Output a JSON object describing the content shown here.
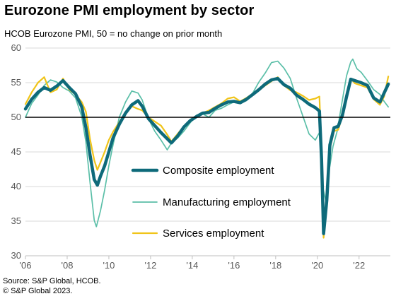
{
  "chart_data": {
    "type": "line",
    "title": "Eurozone PMI employment  by sector",
    "subtitle": "HCOB  Eurozone PMI, 50 = no change on prior month",
    "ylim": [
      30,
      60
    ],
    "yticks": [
      30,
      35,
      40,
      45,
      50,
      55,
      60
    ],
    "xlim": [
      2006.0,
      2023.5
    ],
    "xticks": [
      {
        "value": 2006,
        "label": "'06"
      },
      {
        "value": 2008,
        "label": "'08"
      },
      {
        "value": 2010,
        "label": "'10"
      },
      {
        "value": 2012,
        "label": "'12"
      },
      {
        "value": 2014,
        "label": "'14"
      },
      {
        "value": 2016,
        "label": "'16"
      },
      {
        "value": 2018,
        "label": "'18"
      },
      {
        "value": 2020,
        "label": "'20"
      },
      {
        "value": 2022,
        "label": "'22"
      }
    ],
    "reference_line": 50,
    "legend_position": "center",
    "series": [
      {
        "name": "Composite employment",
        "color": "#0e6a7a",
        "points": [
          [
            2006.0,
            51.2
          ],
          [
            2006.3,
            52.6
          ],
          [
            2006.6,
            53.6
          ],
          [
            2006.9,
            54.3
          ],
          [
            2007.2,
            53.9
          ],
          [
            2007.5,
            54.5
          ],
          [
            2007.8,
            55.3
          ],
          [
            2008.1,
            54.3
          ],
          [
            2008.4,
            53.4
          ],
          [
            2008.7,
            51.5
          ],
          [
            2008.9,
            48.5
          ],
          [
            2009.1,
            44.5
          ],
          [
            2009.3,
            41.0
          ],
          [
            2009.45,
            40.2
          ],
          [
            2009.6,
            41.5
          ],
          [
            2009.8,
            43.0
          ],
          [
            2010.0,
            45.0
          ],
          [
            2010.2,
            47.0
          ],
          [
            2010.5,
            49.0
          ],
          [
            2010.8,
            50.6
          ],
          [
            2011.1,
            51.8
          ],
          [
            2011.4,
            52.4
          ],
          [
            2011.6,
            51.6
          ],
          [
            2011.9,
            49.8
          ],
          [
            2012.2,
            48.8
          ],
          [
            2012.5,
            47.8
          ],
          [
            2012.8,
            46.9
          ],
          [
            2013.0,
            46.3
          ],
          [
            2013.3,
            47.3
          ],
          [
            2013.6,
            48.6
          ],
          [
            2013.9,
            49.5
          ],
          [
            2014.2,
            50.1
          ],
          [
            2014.5,
            50.6
          ],
          [
            2014.8,
            50.7
          ],
          [
            2015.1,
            51.3
          ],
          [
            2015.4,
            51.8
          ],
          [
            2015.7,
            52.2
          ],
          [
            2016.0,
            52.3
          ],
          [
            2016.3,
            52.1
          ],
          [
            2016.6,
            52.6
          ],
          [
            2016.9,
            53.3
          ],
          [
            2017.2,
            54.0
          ],
          [
            2017.5,
            54.8
          ],
          [
            2017.8,
            55.4
          ],
          [
            2018.1,
            55.6
          ],
          [
            2018.4,
            54.7
          ],
          [
            2018.7,
            54.2
          ],
          [
            2019.0,
            53.2
          ],
          [
            2019.3,
            52.6
          ],
          [
            2019.6,
            51.9
          ],
          [
            2019.9,
            51.4
          ],
          [
            2020.1,
            50.9
          ],
          [
            2020.2,
            44.0
          ],
          [
            2020.3,
            33.2
          ],
          [
            2020.45,
            38.0
          ],
          [
            2020.6,
            46.0
          ],
          [
            2020.8,
            48.5
          ],
          [
            2021.0,
            48.7
          ],
          [
            2021.2,
            50.3
          ],
          [
            2021.4,
            53.0
          ],
          [
            2021.6,
            55.5
          ],
          [
            2021.8,
            55.3
          ],
          [
            2022.1,
            55.0
          ],
          [
            2022.4,
            54.6
          ],
          [
            2022.7,
            52.8
          ],
          [
            2023.0,
            52.2
          ],
          [
            2023.2,
            53.5
          ],
          [
            2023.4,
            54.8
          ]
        ]
      },
      {
        "name": "Manufacturing employment",
        "color": "#5bbfa8",
        "points": [
          [
            2006.0,
            50.0
          ],
          [
            2006.3,
            52.0
          ],
          [
            2006.6,
            53.2
          ],
          [
            2006.9,
            54.6
          ],
          [
            2007.2,
            55.4
          ],
          [
            2007.5,
            55.1
          ],
          [
            2007.8,
            54.3
          ],
          [
            2008.1,
            53.8
          ],
          [
            2008.4,
            52.8
          ],
          [
            2008.7,
            50.1
          ],
          [
            2008.9,
            46.4
          ],
          [
            2009.1,
            40.5
          ],
          [
            2009.3,
            35.1
          ],
          [
            2009.4,
            34.2
          ],
          [
            2009.6,
            36.5
          ],
          [
            2009.8,
            39.5
          ],
          [
            2010.0,
            43.0
          ],
          [
            2010.2,
            46.0
          ],
          [
            2010.5,
            50.0
          ],
          [
            2010.8,
            52.2
          ],
          [
            2011.1,
            53.8
          ],
          [
            2011.4,
            53.5
          ],
          [
            2011.6,
            52.5
          ],
          [
            2011.9,
            49.8
          ],
          [
            2012.2,
            48.0
          ],
          [
            2012.5,
            46.7
          ],
          [
            2012.8,
            45.3
          ],
          [
            2013.0,
            46.3
          ],
          [
            2013.3,
            47.0
          ],
          [
            2013.6,
            48.0
          ],
          [
            2013.9,
            49.2
          ],
          [
            2014.2,
            50.3
          ],
          [
            2014.5,
            50.5
          ],
          [
            2014.8,
            50.0
          ],
          [
            2015.1,
            51.0
          ],
          [
            2015.4,
            51.3
          ],
          [
            2015.7,
            51.8
          ],
          [
            2016.0,
            52.2
          ],
          [
            2016.3,
            52.0
          ],
          [
            2016.6,
            52.4
          ],
          [
            2016.9,
            53.5
          ],
          [
            2017.2,
            55.1
          ],
          [
            2017.5,
            56.4
          ],
          [
            2017.8,
            57.9
          ],
          [
            2018.1,
            58.1
          ],
          [
            2018.4,
            57.1
          ],
          [
            2018.7,
            55.6
          ],
          [
            2019.0,
            52.8
          ],
          [
            2019.3,
            50.2
          ],
          [
            2019.6,
            47.6
          ],
          [
            2019.9,
            46.7
          ],
          [
            2020.1,
            47.8
          ],
          [
            2020.25,
            40.0
          ],
          [
            2020.4,
            38.0
          ],
          [
            2020.55,
            42.0
          ],
          [
            2020.75,
            45.8
          ],
          [
            2020.95,
            48.0
          ],
          [
            2021.2,
            52.5
          ],
          [
            2021.4,
            56.0
          ],
          [
            2021.6,
            58.0
          ],
          [
            2021.7,
            58.4
          ],
          [
            2021.9,
            57.0
          ],
          [
            2022.1,
            56.5
          ],
          [
            2022.4,
            55.3
          ],
          [
            2022.7,
            54.0
          ],
          [
            2023.0,
            53.3
          ],
          [
            2023.2,
            52.3
          ],
          [
            2023.4,
            51.5
          ]
        ]
      },
      {
        "name": "Services employment",
        "color": "#f0c419",
        "points": [
          [
            2006.0,
            51.9
          ],
          [
            2006.3,
            53.6
          ],
          [
            2006.6,
            55.0
          ],
          [
            2006.9,
            55.8
          ],
          [
            2007.2,
            53.6
          ],
          [
            2007.5,
            54.0
          ],
          [
            2007.8,
            55.6
          ],
          [
            2008.1,
            54.0
          ],
          [
            2008.4,
            53.3
          ],
          [
            2008.7,
            52.2
          ],
          [
            2008.9,
            50.8
          ],
          [
            2009.1,
            46.8
          ],
          [
            2009.3,
            43.8
          ],
          [
            2009.45,
            42.4
          ],
          [
            2009.6,
            43.5
          ],
          [
            2009.8,
            45.0
          ],
          [
            2010.0,
            46.7
          ],
          [
            2010.2,
            47.9
          ],
          [
            2010.5,
            49.3
          ],
          [
            2010.8,
            50.6
          ],
          [
            2011.1,
            51.6
          ],
          [
            2011.4,
            51.2
          ],
          [
            2011.6,
            51.0
          ],
          [
            2011.9,
            50.0
          ],
          [
            2012.2,
            49.4
          ],
          [
            2012.5,
            48.8
          ],
          [
            2012.8,
            47.5
          ],
          [
            2013.0,
            46.5
          ],
          [
            2013.3,
            47.6
          ],
          [
            2013.6,
            48.7
          ],
          [
            2013.9,
            49.5
          ],
          [
            2014.2,
            50.1
          ],
          [
            2014.5,
            50.6
          ],
          [
            2014.8,
            51.0
          ],
          [
            2015.1,
            51.5
          ],
          [
            2015.4,
            52.0
          ],
          [
            2015.7,
            52.7
          ],
          [
            2016.0,
            52.9
          ],
          [
            2016.3,
            52.3
          ],
          [
            2016.6,
            52.8
          ],
          [
            2016.9,
            53.4
          ],
          [
            2017.2,
            53.9
          ],
          [
            2017.5,
            54.6
          ],
          [
            2017.8,
            55.2
          ],
          [
            2018.1,
            55.8
          ],
          [
            2018.4,
            54.6
          ],
          [
            2018.7,
            53.9
          ],
          [
            2019.0,
            53.6
          ],
          [
            2019.3,
            53.1
          ],
          [
            2019.6,
            52.5
          ],
          [
            2019.9,
            52.7
          ],
          [
            2020.1,
            53.0
          ],
          [
            2020.2,
            45.0
          ],
          [
            2020.3,
            32.6
          ],
          [
            2020.45,
            37.5
          ],
          [
            2020.6,
            45.5
          ],
          [
            2020.8,
            48.0
          ],
          [
            2021.0,
            48.2
          ],
          [
            2021.2,
            50.2
          ],
          [
            2021.4,
            52.8
          ],
          [
            2021.6,
            55.6
          ],
          [
            2021.8,
            54.9
          ],
          [
            2022.1,
            54.6
          ],
          [
            2022.4,
            54.3
          ],
          [
            2022.7,
            52.6
          ],
          [
            2023.0,
            51.8
          ],
          [
            2023.2,
            53.0
          ],
          [
            2023.4,
            55.9
          ]
        ]
      }
    ]
  },
  "footer": {
    "source": "Source: S&P Global, HCOB.",
    "copyright": "© S&P Global 2023."
  }
}
